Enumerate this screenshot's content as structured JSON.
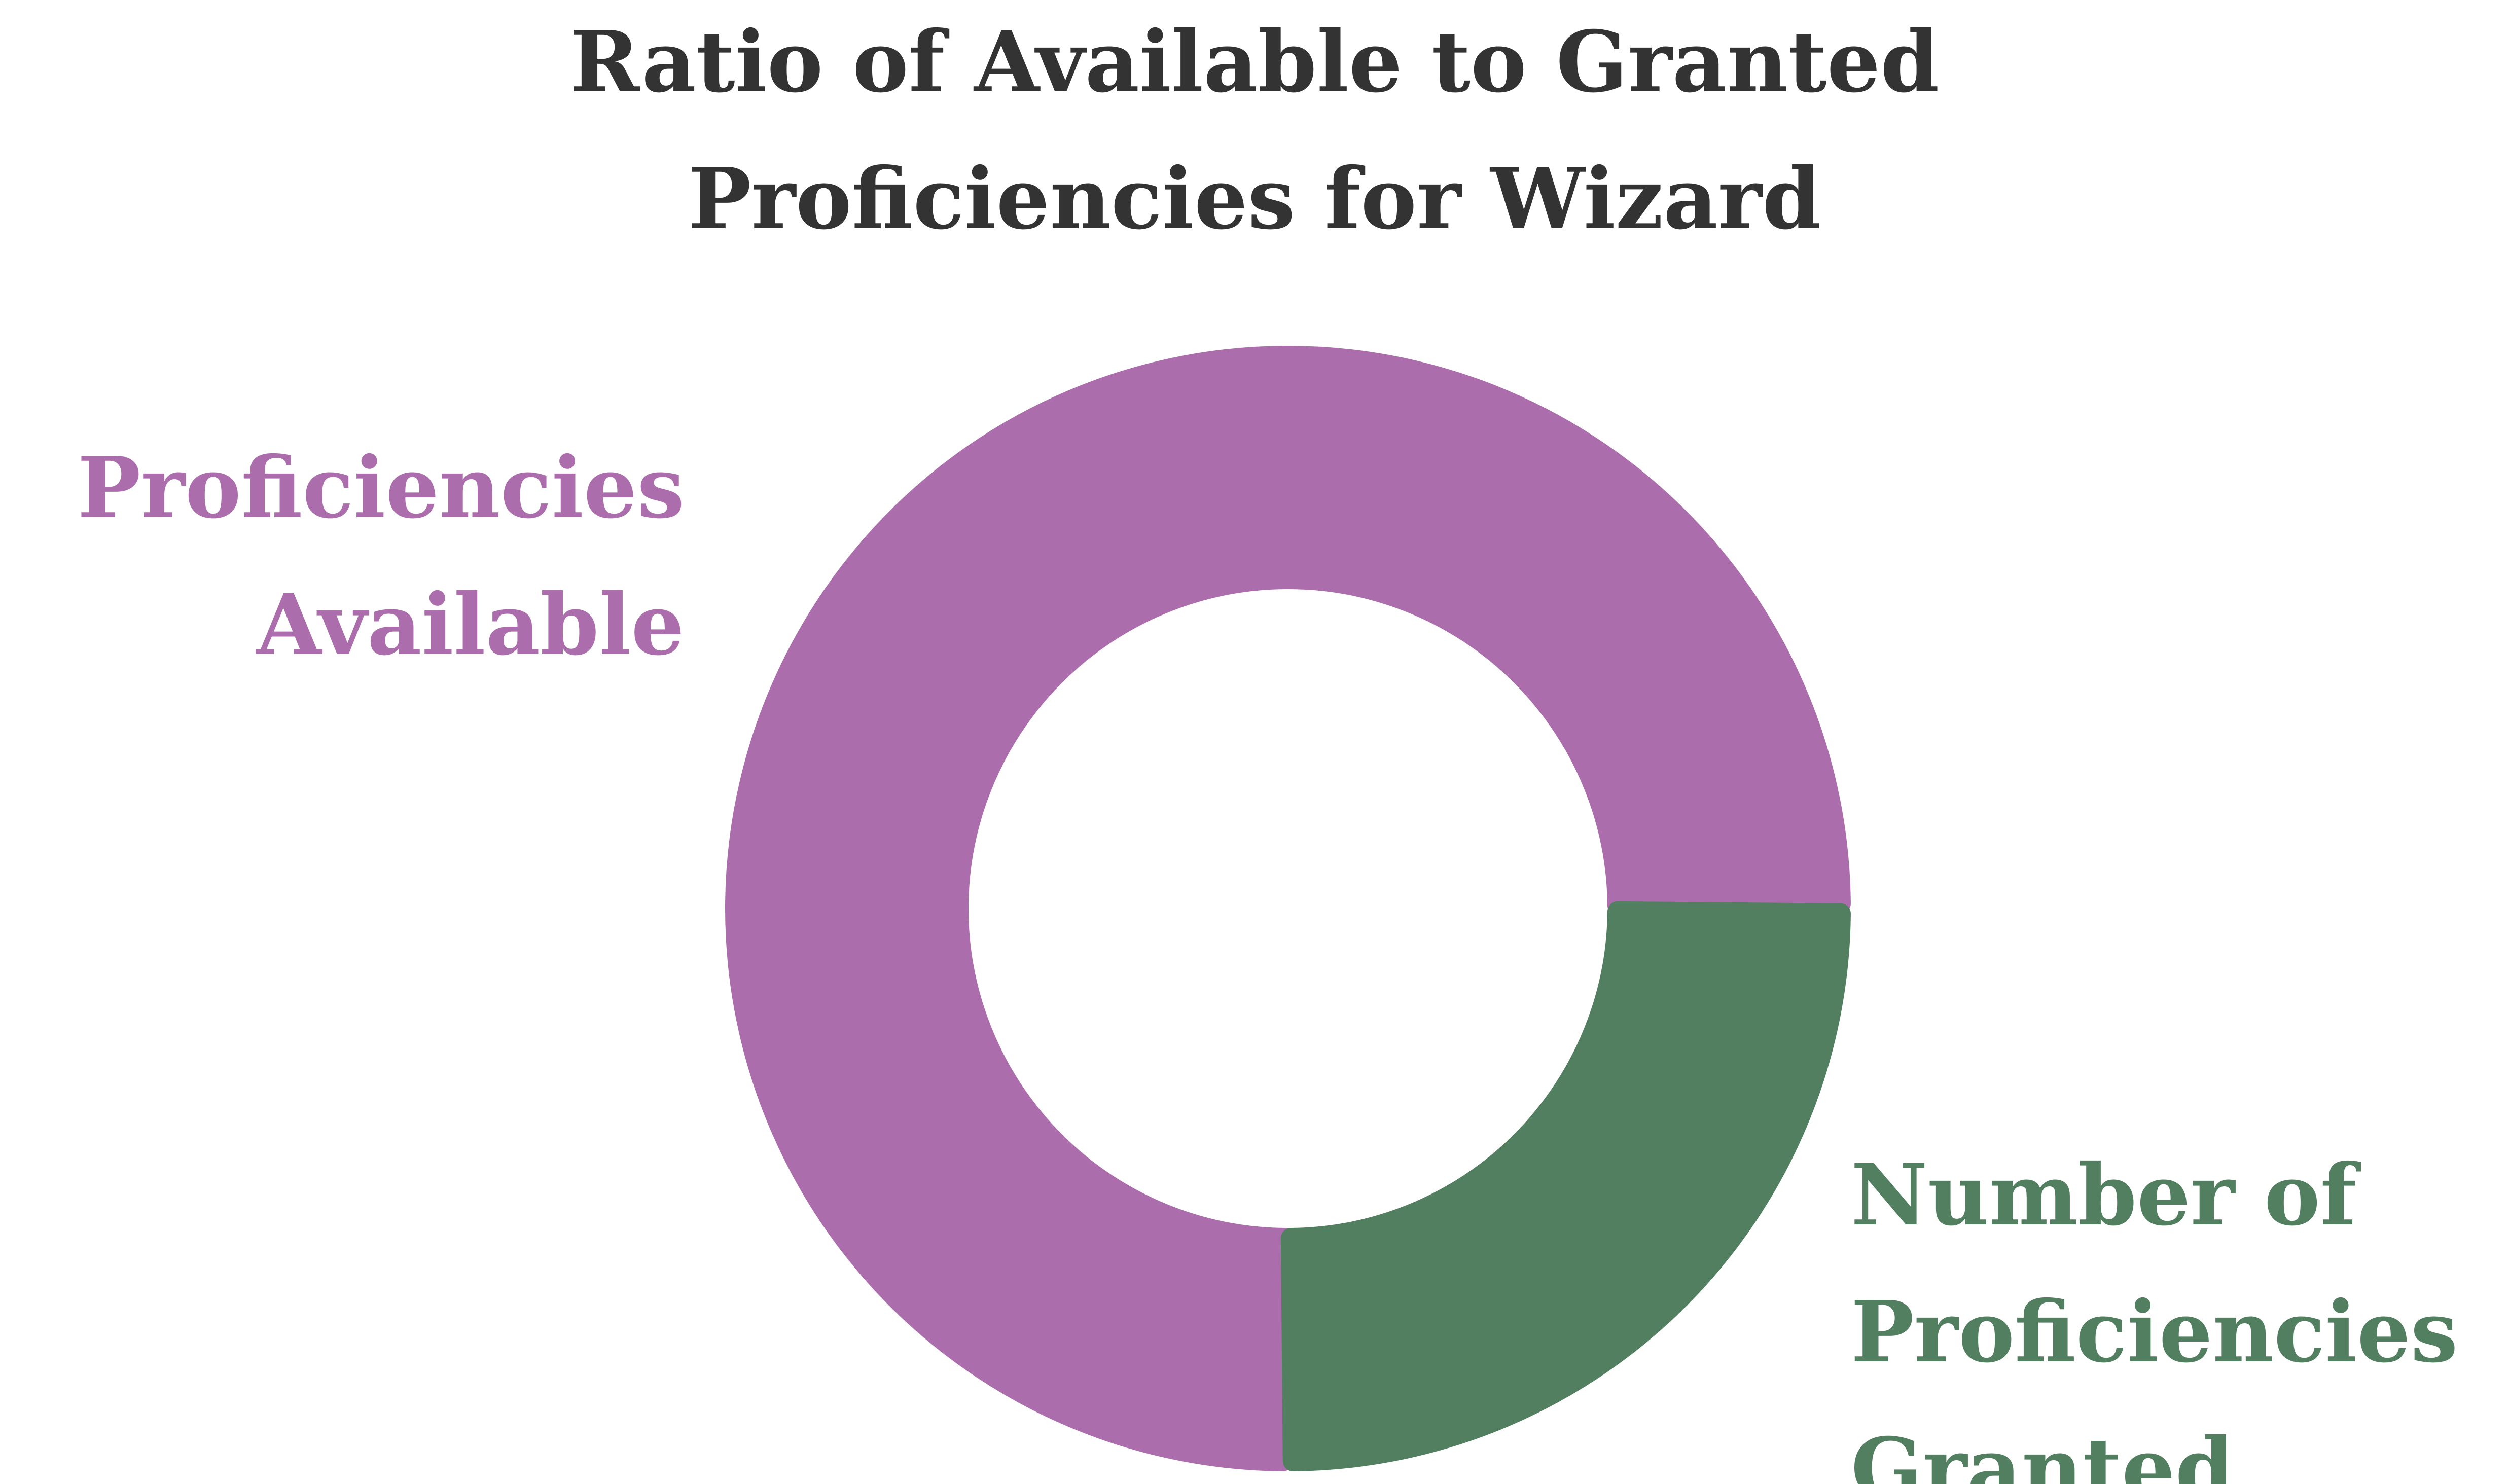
{
  "chart_data": {
    "type": "pie",
    "style": "donut",
    "title": "Ratio of Available to Granted Proficiencies for Wizard",
    "title_lines": [
      "Ratio of Available to Granted",
      "Proficiencies for Wizard"
    ],
    "slices": [
      {
        "label": "Proficiencies Available",
        "label_lines": [
          "Proficiencies",
          "Available"
        ],
        "value": 6,
        "color": "#AB6DAB"
      },
      {
        "label": "Number of Proficiencies Granted",
        "label_lines": [
          "Number of",
          "Proficiencies",
          "Granted"
        ],
        "value": 2,
        "color": "#517F60"
      }
    ],
    "legend": "none",
    "background": "#FFFFFF"
  }
}
